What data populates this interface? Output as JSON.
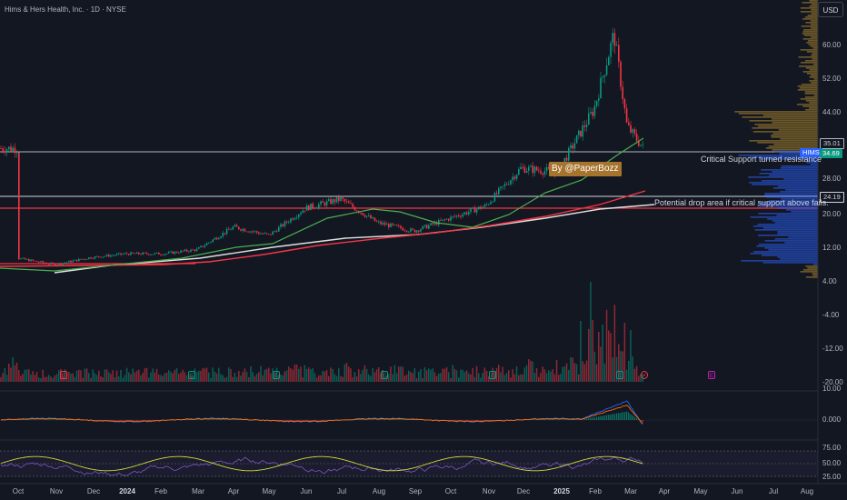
{
  "header": {
    "symbol_title": "Hims & Hers Health, Inc. · 1D · NYSE",
    "currency_button": "USD"
  },
  "price_axis": {
    "labels": [
      "60.00",
      "52.00",
      "44.00",
      "28.00",
      "20.00",
      "12.00",
      "4.00",
      "-4.00",
      "-12.00",
      "-20.00"
    ],
    "tags": {
      "resistance_level": "35.01",
      "symbol": "HIMS",
      "last_price": "34.69",
      "support_level": "24.19"
    }
  },
  "indicator_axes": {
    "macd": [
      "10.00",
      "0.000"
    ],
    "rsi": [
      "75.00",
      "50.00",
      "25.00"
    ]
  },
  "time_axis": {
    "labels": [
      "Oct",
      "Nov",
      "Dec",
      "2024",
      "Feb",
      "Mar",
      "Apr",
      "May",
      "Jun",
      "Jul",
      "Aug",
      "Sep",
      "Oct",
      "Nov",
      "Dec",
      "2025",
      "Feb",
      "Mar",
      "Apr",
      "May",
      "Jun",
      "Jul",
      "Aug"
    ]
  },
  "annotations": {
    "watermark": "By @PaperBozz",
    "resistance_note": "Critical Support turned resistance",
    "drop_note": "Potential drop area if critical support above fails."
  },
  "events": {
    "earnings_glyph": "E",
    "dividend_glyph": "E",
    "split_glyph": "⚡"
  },
  "colors": {
    "background": "#131722",
    "up": "#089981",
    "down": "#f23645",
    "ma50": "#4caf50",
    "ma100": "#f23645",
    "ma200": "#e0e0e0",
    "volume_profile": "#2962ff",
    "annotation_badge": "#a6742d",
    "rsi_line": "#7e57c2",
    "rsi_signal": "#cddc39"
  },
  "chart_data": {
    "type": "candlestick",
    "title": "Hims & Hers Health, Inc. · 1D · NYSE",
    "y_unit": "USD",
    "ylim": [
      -20,
      66
    ],
    "horizontal_levels": [
      35.01,
      24.19,
      22.0
    ],
    "price_path": {
      "x": [
        "2023-10-01",
        "2023-11-01",
        "2023-12-01",
        "2024-01-01",
        "2024-02-01",
        "2024-03-01",
        "2024-04-01",
        "2024-05-01",
        "2024-06-01",
        "2024-07-01",
        "2024-08-01",
        "2024-09-01",
        "2024-10-01",
        "2024-11-01",
        "2024-12-01",
        "2025-01-01",
        "2025-02-01",
        "2025-02-18",
        "2025-03-01",
        "2025-03-15"
      ],
      "close": [
        8.5,
        7.0,
        8.7,
        9.6,
        9.6,
        10.6,
        16.0,
        14.0,
        20.5,
        22.6,
        17.0,
        15.0,
        18.0,
        21.0,
        30.0,
        29.0,
        44.0,
        62.0,
        40.0,
        34.7
      ]
    },
    "moving_averages": [
      "MA50",
      "MA100",
      "MA200"
    ],
    "lower_panels": [
      "Volume",
      "MACD",
      "RSI"
    ]
  }
}
